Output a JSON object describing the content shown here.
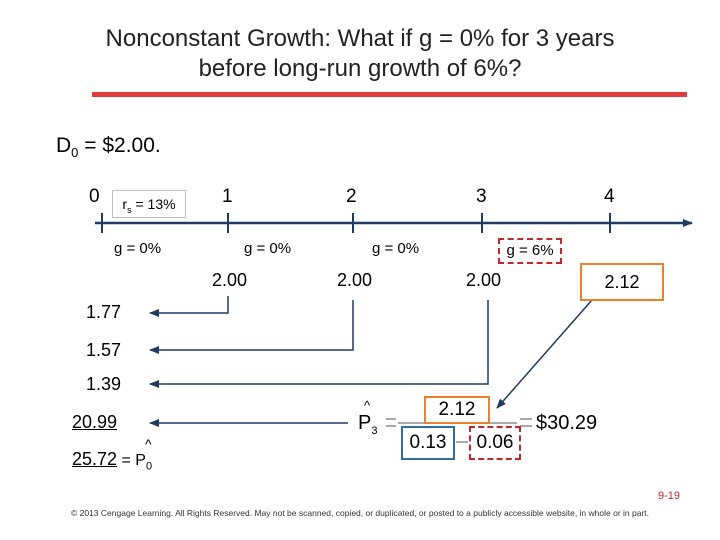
{
  "title": {
    "line1": "Nonconstant Growth:  What if g = 0% for 3 years",
    "line2": "before long-run growth of 6%?"
  },
  "dividend": {
    "prefix": "D",
    "sub": "0",
    "rest": " = $2.00."
  },
  "timeline": {
    "periods": [
      "0",
      "1",
      "2",
      "3",
      "4"
    ],
    "rate": {
      "prefix": "r",
      "sub": "s",
      "rest": " = 13%"
    },
    "growth": [
      "g = 0%",
      "g = 0%",
      "g = 0%",
      "g = 6%"
    ],
    "cash_flows": [
      "2.00",
      "2.00",
      "2.00",
      "2.12"
    ]
  },
  "present_values": [
    "1.77",
    "1.57",
    "1.39",
    "20.99",
    "25.72"
  ],
  "p0_label": {
    "prefix": " = P",
    "sub": "0"
  },
  "formula": {
    "lhs": "P",
    "lhs_sub": "3",
    "numerator": "2.12",
    "denom_left": "0.13",
    "denom_right": "0.06",
    "result": "$30.29"
  },
  "footer": {
    "page": "9-19",
    "copyright": "© 2013 Cengage Learning. All Rights Reserved. May not be scanned, copied, or duplicated, or posted to a publicly accessible website, in whole or in part."
  },
  "colors": {
    "accent_red": "#e03a3a",
    "orange": "#e9822a",
    "blue": "#2f6fa8",
    "dashed_red": "#c0282d"
  }
}
